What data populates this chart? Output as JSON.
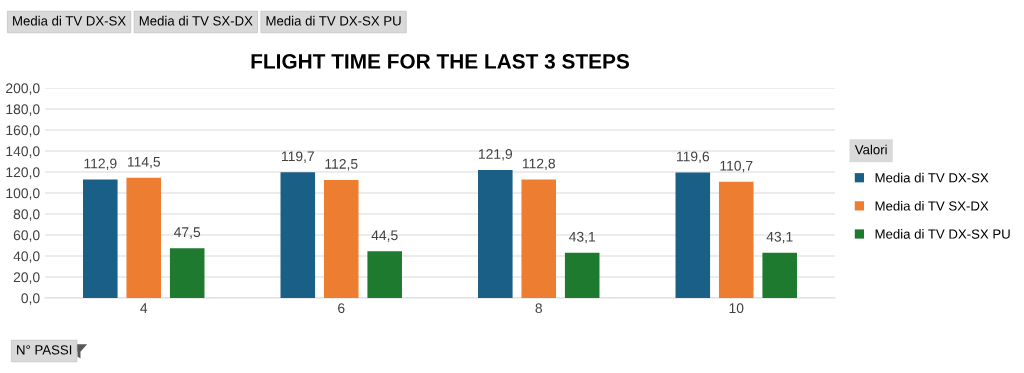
{
  "chart_data": {
    "type": "bar",
    "title": "FLIGHT TIME FOR THE LAST 3 STEPS",
    "xlabel": "N° PASSI",
    "legend_title": "Valori",
    "categories": [
      "4",
      "6",
      "8",
      "10"
    ],
    "series": [
      {
        "name": "Media di TV DX-SX",
        "color": "#1a5f85",
        "values": [
          112.9,
          119.7,
          121.9,
          119.6
        ],
        "value_labels": [
          "112,9",
          "119,7",
          "121,9",
          "119,6"
        ]
      },
      {
        "name": "Media di TV SX-DX",
        "color": "#ed7d31",
        "values": [
          114.5,
          112.5,
          112.8,
          110.7
        ],
        "value_labels": [
          "114,5",
          "112,5",
          "112,8",
          "110,7"
        ]
      },
      {
        "name": "Media di TV DX-SX PU",
        "color": "#1e7a2e",
        "values": [
          47.5,
          44.5,
          43.1,
          43.1
        ],
        "value_labels": [
          "47,5",
          "44,5",
          "43,1",
          "43,1"
        ]
      }
    ],
    "ylim": [
      0,
      200
    ],
    "yticks": [
      {
        "value": 0,
        "label": "0,0"
      },
      {
        "value": 20,
        "label": "20,0"
      },
      {
        "value": 40,
        "label": "40,0"
      },
      {
        "value": 60,
        "label": "60,0"
      },
      {
        "value": 80,
        "label": "80,0"
      },
      {
        "value": 100,
        "label": "100,0"
      },
      {
        "value": 120,
        "label": "120,0"
      },
      {
        "value": 140,
        "label": "140,0"
      },
      {
        "value": 160,
        "label": "160,0"
      },
      {
        "value": 180,
        "label": "180,0"
      },
      {
        "value": 200,
        "label": "200,0"
      }
    ],
    "grid": "y",
    "legend": "right"
  }
}
